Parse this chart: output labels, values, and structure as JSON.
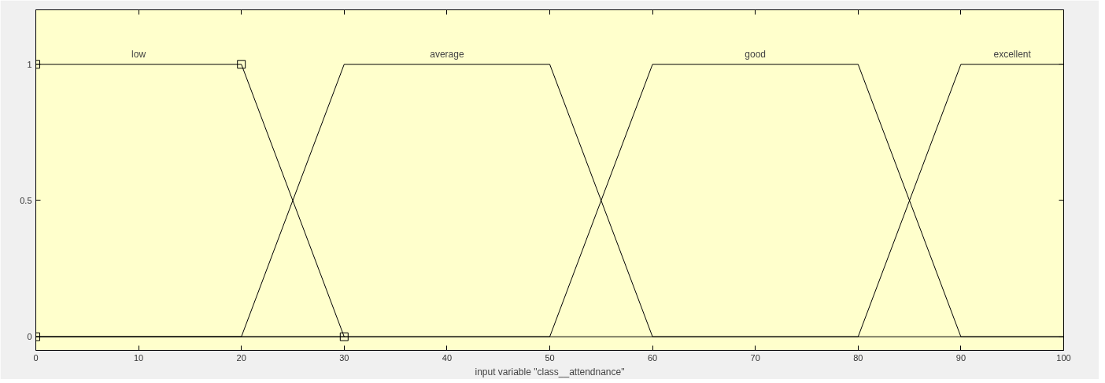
{
  "chart_data": {
    "type": "line",
    "xlabel": "input variable \"class__attendnance\"",
    "xlim": [
      0,
      100
    ],
    "ylim": [
      -0.05,
      1.2
    ],
    "xticks": [
      0,
      10,
      20,
      30,
      40,
      50,
      60,
      70,
      80,
      90,
      100
    ],
    "yticks": [
      0,
      0.5,
      1
    ],
    "grid": false,
    "line_style": "solid",
    "series": [
      {
        "name": "low",
        "color": "#000000",
        "marker": "square",
        "x": [
          0,
          0,
          20,
          30
        ],
        "values": [
          0,
          1,
          1,
          0
        ]
      },
      {
        "name": "average",
        "color": "#000000",
        "marker": "none",
        "x": [
          0,
          20,
          30,
          50,
          60,
          100
        ],
        "values": [
          0,
          0,
          1,
          1,
          0,
          0
        ]
      },
      {
        "name": "good",
        "color": "#000000",
        "marker": "none",
        "x": [
          0,
          50,
          60,
          80,
          90,
          100
        ],
        "values": [
          0,
          0,
          1,
          1,
          0,
          0
        ]
      },
      {
        "name": "excellent",
        "color": "#000000",
        "marker": "none",
        "x": [
          0,
          80,
          90,
          100
        ],
        "values": [
          0,
          0,
          1,
          1
        ]
      }
    ]
  }
}
